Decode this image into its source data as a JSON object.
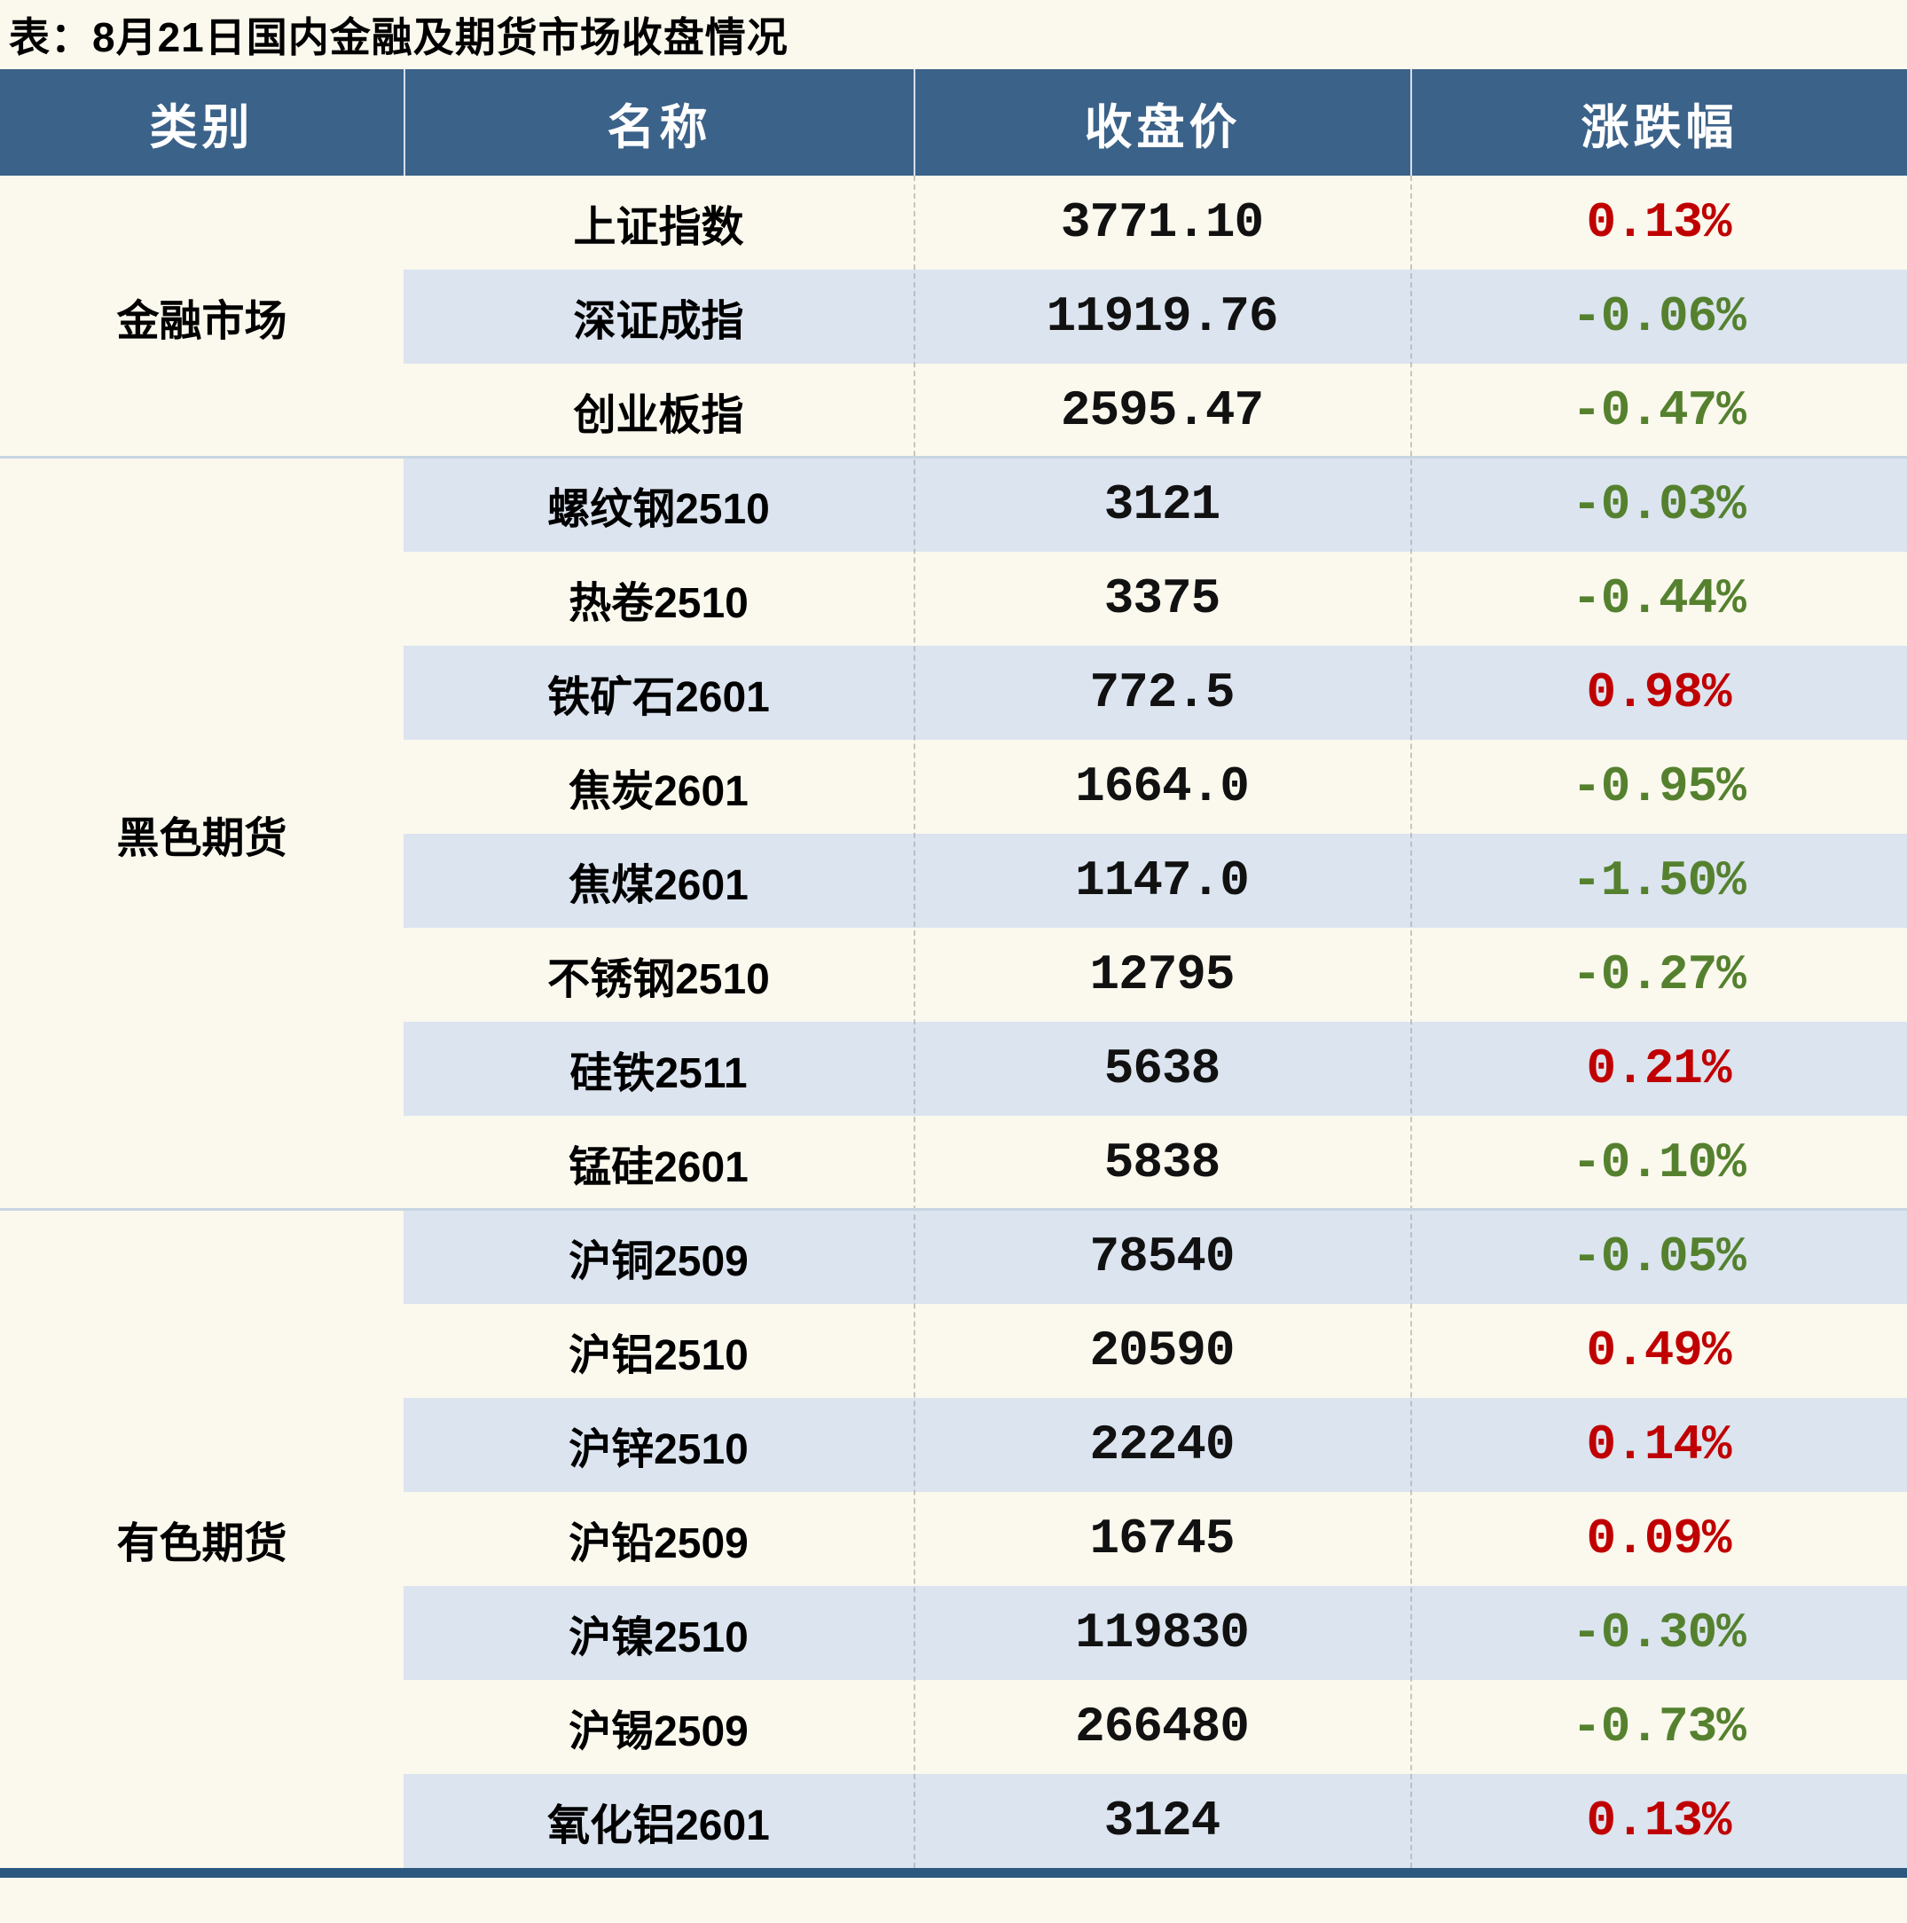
{
  "title": "表：8月21日国内金融及期货市场收盘情况",
  "columns": [
    "类别",
    "名称",
    "收盘价",
    "涨跌幅"
  ],
  "groups": [
    {
      "label": "金融市场",
      "rowspan": 3
    },
    {
      "label": "黑色期货",
      "rowspan": 8
    },
    {
      "label": "有色期货",
      "rowspan": 7
    }
  ],
  "rows": [
    {
      "name": "上证指数",
      "close": "3771.10",
      "change": "0.13%",
      "direction": "up"
    },
    {
      "name": "深证成指",
      "close": "11919.76",
      "change": "-0.06%",
      "direction": "down"
    },
    {
      "name": "创业板指",
      "close": "2595.47",
      "change": "-0.47%",
      "direction": "down"
    },
    {
      "name": "螺纹钢2510",
      "close": "3121",
      "change": "-0.03%",
      "direction": "down"
    },
    {
      "name": "热卷2510",
      "close": "3375",
      "change": "-0.44%",
      "direction": "down"
    },
    {
      "name": "铁矿石2601",
      "close": "772.5",
      "change": "0.98%",
      "direction": "up"
    },
    {
      "name": "焦炭2601",
      "close": "1664.0",
      "change": "-0.95%",
      "direction": "down"
    },
    {
      "name": "焦煤2601",
      "close": "1147.0",
      "change": "-1.50%",
      "direction": "down"
    },
    {
      "name": "不锈钢2510",
      "close": "12795",
      "change": "-0.27%",
      "direction": "down"
    },
    {
      "name": "硅铁2511",
      "close": "5638",
      "change": "0.21%",
      "direction": "up"
    },
    {
      "name": "锰硅2601",
      "close": "5838",
      "change": "-0.10%",
      "direction": "down"
    },
    {
      "name": "沪铜2509",
      "close": "78540",
      "change": "-0.05%",
      "direction": "down"
    },
    {
      "name": "沪铝2510",
      "close": "20590",
      "change": "0.49%",
      "direction": "up"
    },
    {
      "name": "沪锌2510",
      "close": "22240",
      "change": "0.14%",
      "direction": "up"
    },
    {
      "name": "沪铅2509",
      "close": "16745",
      "change": "0.09%",
      "direction": "up"
    },
    {
      "name": "沪镍2510",
      "close": "119830",
      "change": "-0.30%",
      "direction": "down"
    },
    {
      "name": "沪锡2509",
      "close": "266480",
      "change": "-0.73%",
      "direction": "down"
    },
    {
      "name": "氧化铝2601",
      "close": "3124",
      "change": "0.13%",
      "direction": "up"
    }
  ],
  "colors": {
    "up": "#c00000",
    "down": "#55812f",
    "header_bg": "#3b6289",
    "stripe": "#dbe4ef",
    "bar": "#2c5880",
    "page_bg": "#fbf8ed"
  }
}
